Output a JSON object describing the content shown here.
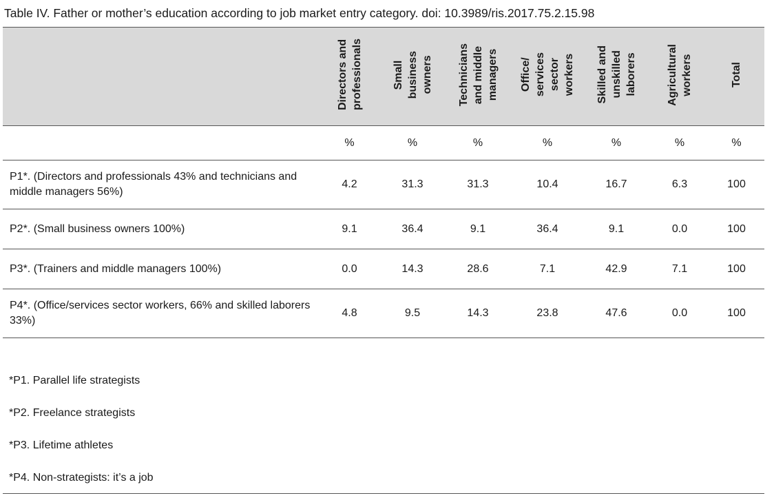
{
  "caption": "Table IV. Father or mother’s education according to job market entry category. doi: 10.3989/ris.2017.75.2.15.98",
  "columns": [
    "Directors and\nprofessionals",
    "Small\nbusiness\nowners",
    "Technicians\nand middle\nmanagers",
    "Office/\nservices\nsector\nworkers",
    "Skilled and\nunskilled\nlaborers",
    "Agricultural\nworkers",
    "Total"
  ],
  "units": [
    "%",
    "%",
    "%",
    "%",
    "%",
    "%",
    "%"
  ],
  "rows": [
    {
      "label": "P1*. (Directors and professionals 43% and technicians and middle managers 56%)",
      "values": [
        "4.2",
        "31.3",
        "31.3",
        "10.4",
        "16.7",
        "6.3",
        "100"
      ]
    },
    {
      "label": "P2*. (Small business owners 100%)",
      "values": [
        "9.1",
        "36.4",
        "9.1",
        "36.4",
        "9.1",
        "0.0",
        "100"
      ]
    },
    {
      "label": "P3*. (Trainers and middle managers 100%)",
      "values": [
        "0.0",
        "14.3",
        "28.6",
        "7.1",
        "42.9",
        "7.1",
        "100"
      ]
    },
    {
      "label": "P4*. (Office/services sector workers, 66% and skilled laborers 33%)",
      "values": [
        "4.8",
        "9.5",
        "14.3",
        "23.8",
        "47.6",
        "0.0",
        "100"
      ]
    }
  ],
  "footnotes": [
    "*P1. Parallel life strategists",
    "*P2. Freelance strategists",
    "*P3. Lifetime athletes",
    "*P4. Non-strategists: it’s a job"
  ],
  "colors": {
    "header_background": "#d9d9d9",
    "rule": "#555555",
    "text": "#1a1a1a"
  }
}
